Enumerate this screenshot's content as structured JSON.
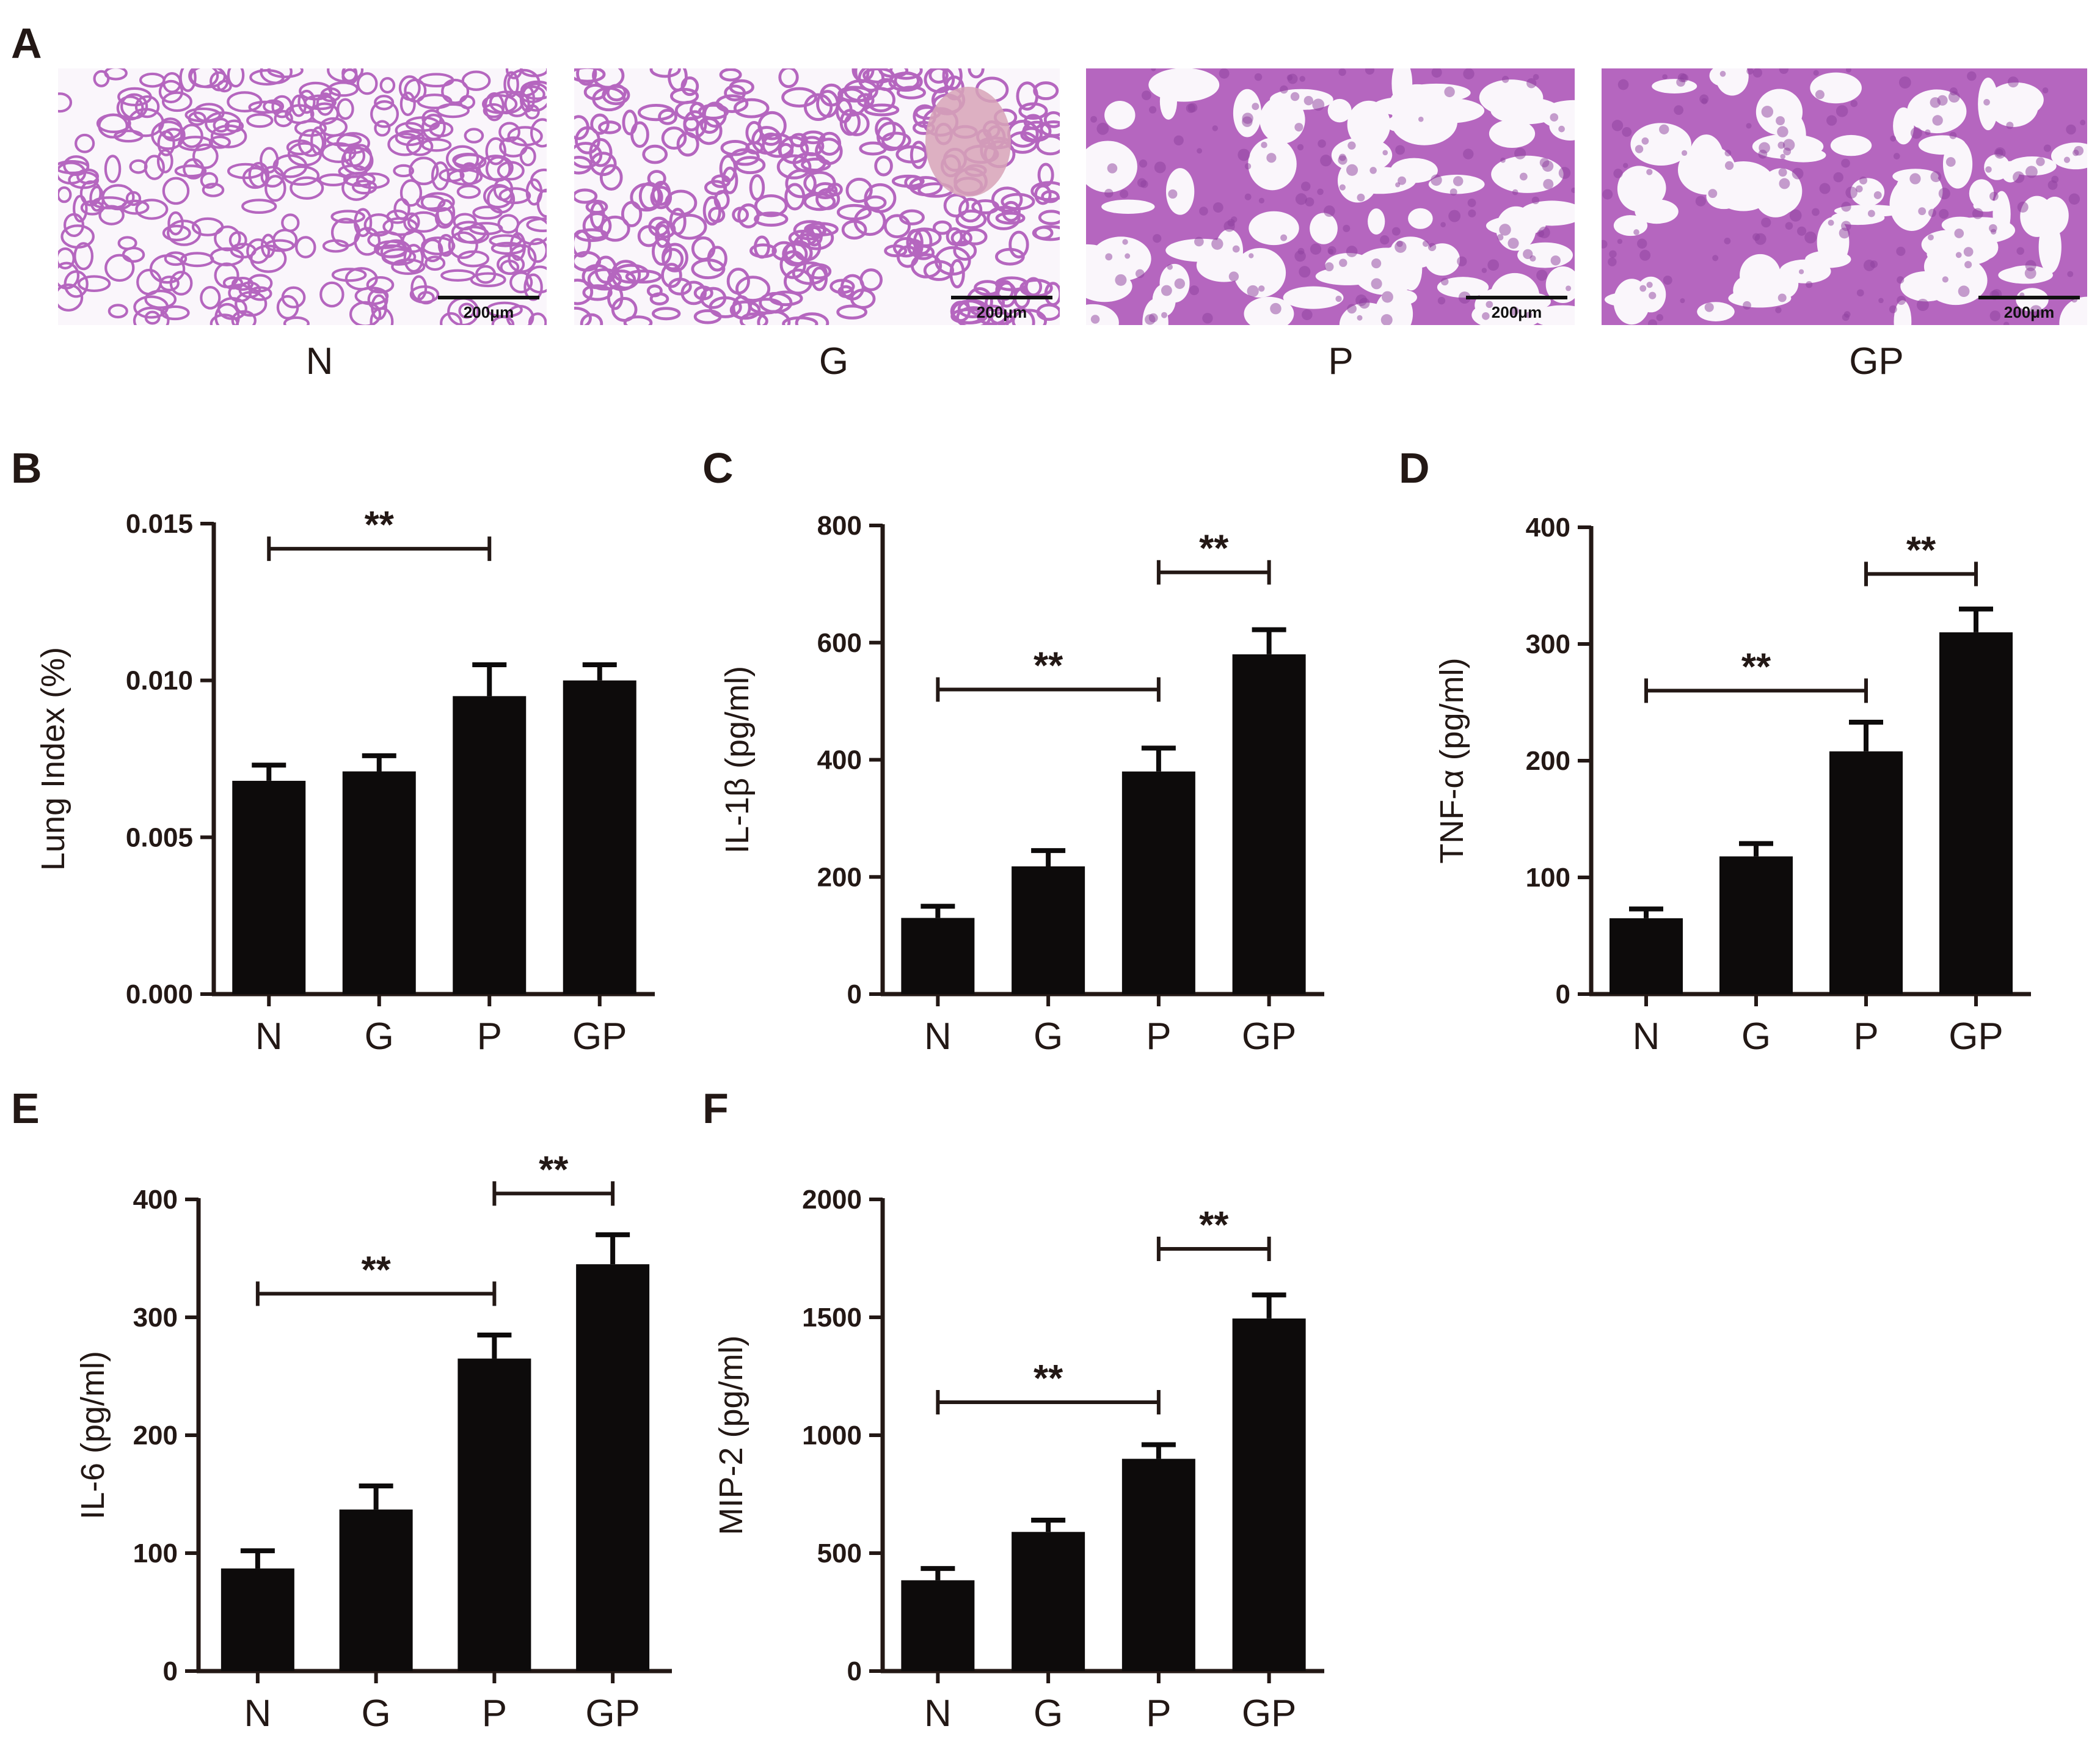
{
  "figure": {
    "ink_color": "#231815",
    "bar_color": "#0d0b0b",
    "tissue_colors": {
      "background": "#faf6fb",
      "stroma": "#b566bf",
      "dense": "#8e3f9e",
      "vessel": "#d7a3b7"
    }
  },
  "panel_a": {
    "letter": "A",
    "scale_bar_label": "200μm",
    "images": [
      {
        "group": "N",
        "density": 0.2
      },
      {
        "group": "G",
        "density": 0.3
      },
      {
        "group": "P",
        "density": 0.72
      },
      {
        "group": "GP",
        "density": 0.78
      }
    ]
  },
  "chart_data": [
    {
      "panel": "B",
      "type": "bar",
      "ylabel": "Lung Index (%)",
      "categories": [
        "N",
        "G",
        "P",
        "GP"
      ],
      "values": [
        0.0068,
        0.0071,
        0.0095,
        0.01
      ],
      "errors": [
        0.0005,
        0.0005,
        0.001,
        0.0005
      ],
      "ylim": [
        0,
        0.015
      ],
      "ticks": [
        0.0,
        0.005,
        0.01,
        0.015
      ],
      "tick_labels": [
        "0.000",
        "0.005",
        "0.010",
        "0.015"
      ],
      "significance": [
        {
          "from": "N",
          "to": "P",
          "y": 0.0142,
          "label": "**"
        }
      ]
    },
    {
      "panel": "C",
      "type": "bar",
      "ylabel": "IL-1β (pg/ml)",
      "categories": [
        "N",
        "G",
        "P",
        "GP"
      ],
      "values": [
        130,
        218,
        380,
        580
      ],
      "errors": [
        20,
        27,
        40,
        42
      ],
      "ylim": [
        0,
        800
      ],
      "ticks": [
        0,
        200,
        400,
        600,
        800
      ],
      "tick_labels": [
        "0",
        "200",
        "400",
        "600",
        "800"
      ],
      "significance": [
        {
          "from": "N",
          "to": "P",
          "y": 520,
          "label": "**"
        },
        {
          "from": "P",
          "to": "GP",
          "y": 720,
          "label": "**"
        }
      ]
    },
    {
      "panel": "D",
      "type": "bar",
      "ylabel": "TNF-α (pg/ml)",
      "categories": [
        "N",
        "G",
        "P",
        "GP"
      ],
      "values": [
        65,
        118,
        208,
        310
      ],
      "errors": [
        8,
        11,
        25,
        20
      ],
      "ylim": [
        0,
        400
      ],
      "ticks": [
        0,
        100,
        200,
        300,
        400
      ],
      "tick_labels": [
        "0",
        "100",
        "200",
        "300",
        "400"
      ],
      "significance": [
        {
          "from": "N",
          "to": "P",
          "y": 260,
          "label": "**"
        },
        {
          "from": "P",
          "to": "GP",
          "y": 360,
          "label": "**"
        }
      ]
    },
    {
      "panel": "E",
      "type": "bar",
      "ylabel": "IL-6 (pg/ml)",
      "categories": [
        "N",
        "G",
        "P",
        "GP"
      ],
      "values": [
        87,
        137,
        265,
        345
      ],
      "errors": [
        15,
        20,
        20,
        25
      ],
      "ylim": [
        0,
        400
      ],
      "ticks": [
        0,
        100,
        200,
        300,
        400
      ],
      "tick_labels": [
        "0",
        "100",
        "200",
        "300",
        "400"
      ],
      "significance": [
        {
          "from": "N",
          "to": "P",
          "y": 320,
          "label": "**"
        },
        {
          "from": "P",
          "to": "GP",
          "y": 405,
          "label": "**"
        }
      ]
    },
    {
      "panel": "F",
      "type": "bar",
      "ylabel": "MIP-2 (pg/ml)",
      "categories": [
        "N",
        "G",
        "P",
        "GP"
      ],
      "values": [
        385,
        590,
        900,
        1495
      ],
      "errors": [
        50,
        50,
        60,
        100
      ],
      "ylim": [
        0,
        2000
      ],
      "ticks": [
        0,
        500,
        1000,
        1500,
        2000
      ],
      "tick_labels": [
        "0",
        "500",
        "1000",
        "1500",
        "2000"
      ],
      "significance": [
        {
          "from": "N",
          "to": "P",
          "y": 1140,
          "label": "**"
        },
        {
          "from": "P",
          "to": "GP",
          "y": 1790,
          "label": "**"
        }
      ]
    }
  ]
}
